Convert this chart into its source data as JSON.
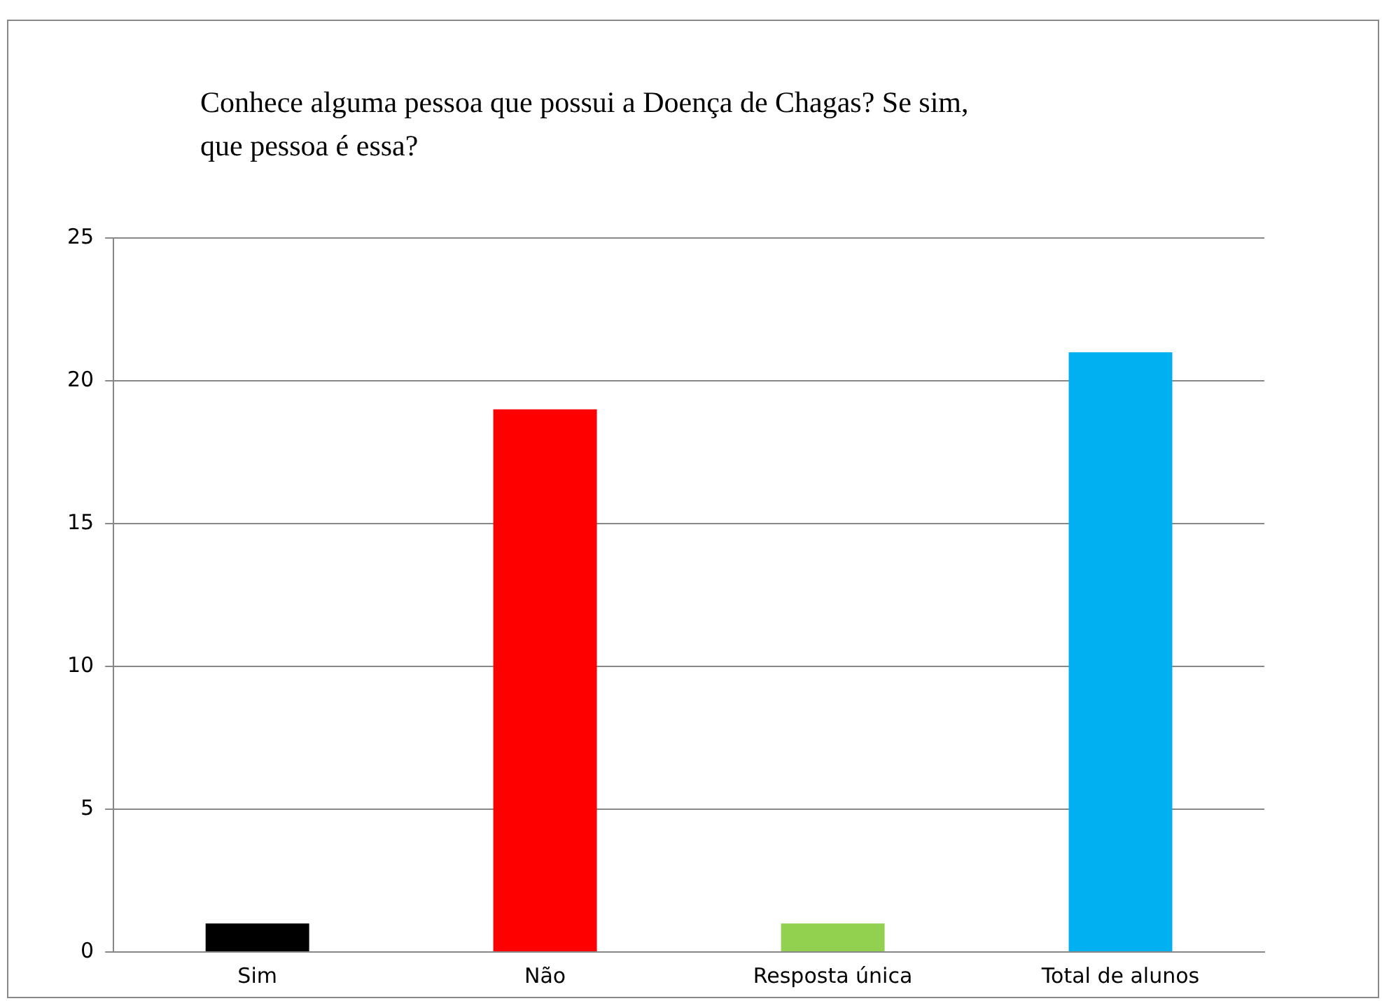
{
  "chart_data": {
    "type": "bar",
    "title": "Conhece alguma pessoa que possui a Doença de Chagas? Se sim, que pessoa é essa?",
    "categories": [
      "Sim",
      "Não",
      "Resposta única",
      "Total de alunos"
    ],
    "values": [
      1,
      19,
      1,
      21
    ],
    "colors": [
      "#000000",
      "#ff0000",
      "#92d050",
      "#00b0f0"
    ],
    "ylim": [
      0,
      25
    ],
    "yticks": [
      0,
      5,
      10,
      15,
      20,
      25
    ],
    "grid": "y",
    "legend": false
  }
}
